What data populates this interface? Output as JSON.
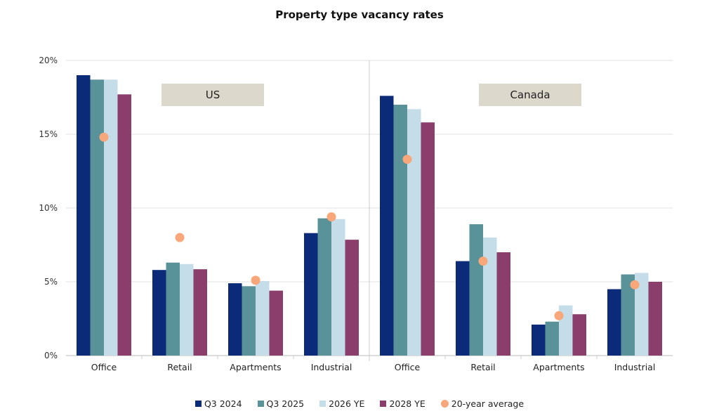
{
  "chart_data": {
    "type": "bar",
    "title": "Property type vacancy rates",
    "panels": [
      "US",
      "Canada"
    ],
    "categories": [
      "Office",
      "Retail",
      "Apartments",
      "Industrial",
      "Office",
      "Retail",
      "Apartments",
      "Industrial"
    ],
    "ylim": [
      0,
      20
    ],
    "yticks": [
      "0%",
      "5%",
      "10%",
      "15%",
      "20%"
    ],
    "grid": true,
    "legend_position": "bottom",
    "series": [
      {
        "name": "Q3 2024",
        "color": "#0b2a78",
        "values": [
          19.0,
          5.8,
          4.9,
          8.3,
          17.6,
          6.4,
          2.1,
          4.5
        ]
      },
      {
        "name": "Q3 2025",
        "color": "#5a929a",
        "values": [
          18.7,
          6.3,
          4.7,
          9.3,
          17.0,
          8.9,
          2.3,
          5.5
        ]
      },
      {
        "name": "2026 YE",
        "color": "#c4dde8",
        "values": [
          18.7,
          6.2,
          5.05,
          9.25,
          16.7,
          8.0,
          3.4,
          5.6
        ]
      },
      {
        "name": "2028 YE",
        "color": "#8b3d6b",
        "values": [
          17.7,
          5.85,
          4.4,
          7.85,
          15.8,
          7.0,
          2.8,
          5.0
        ]
      }
    ],
    "average": {
      "name": "20-year average",
      "color": "#f7a77a",
      "values": [
        14.8,
        8.0,
        5.1,
        9.4,
        13.3,
        6.4,
        2.7,
        4.8
      ]
    }
  }
}
